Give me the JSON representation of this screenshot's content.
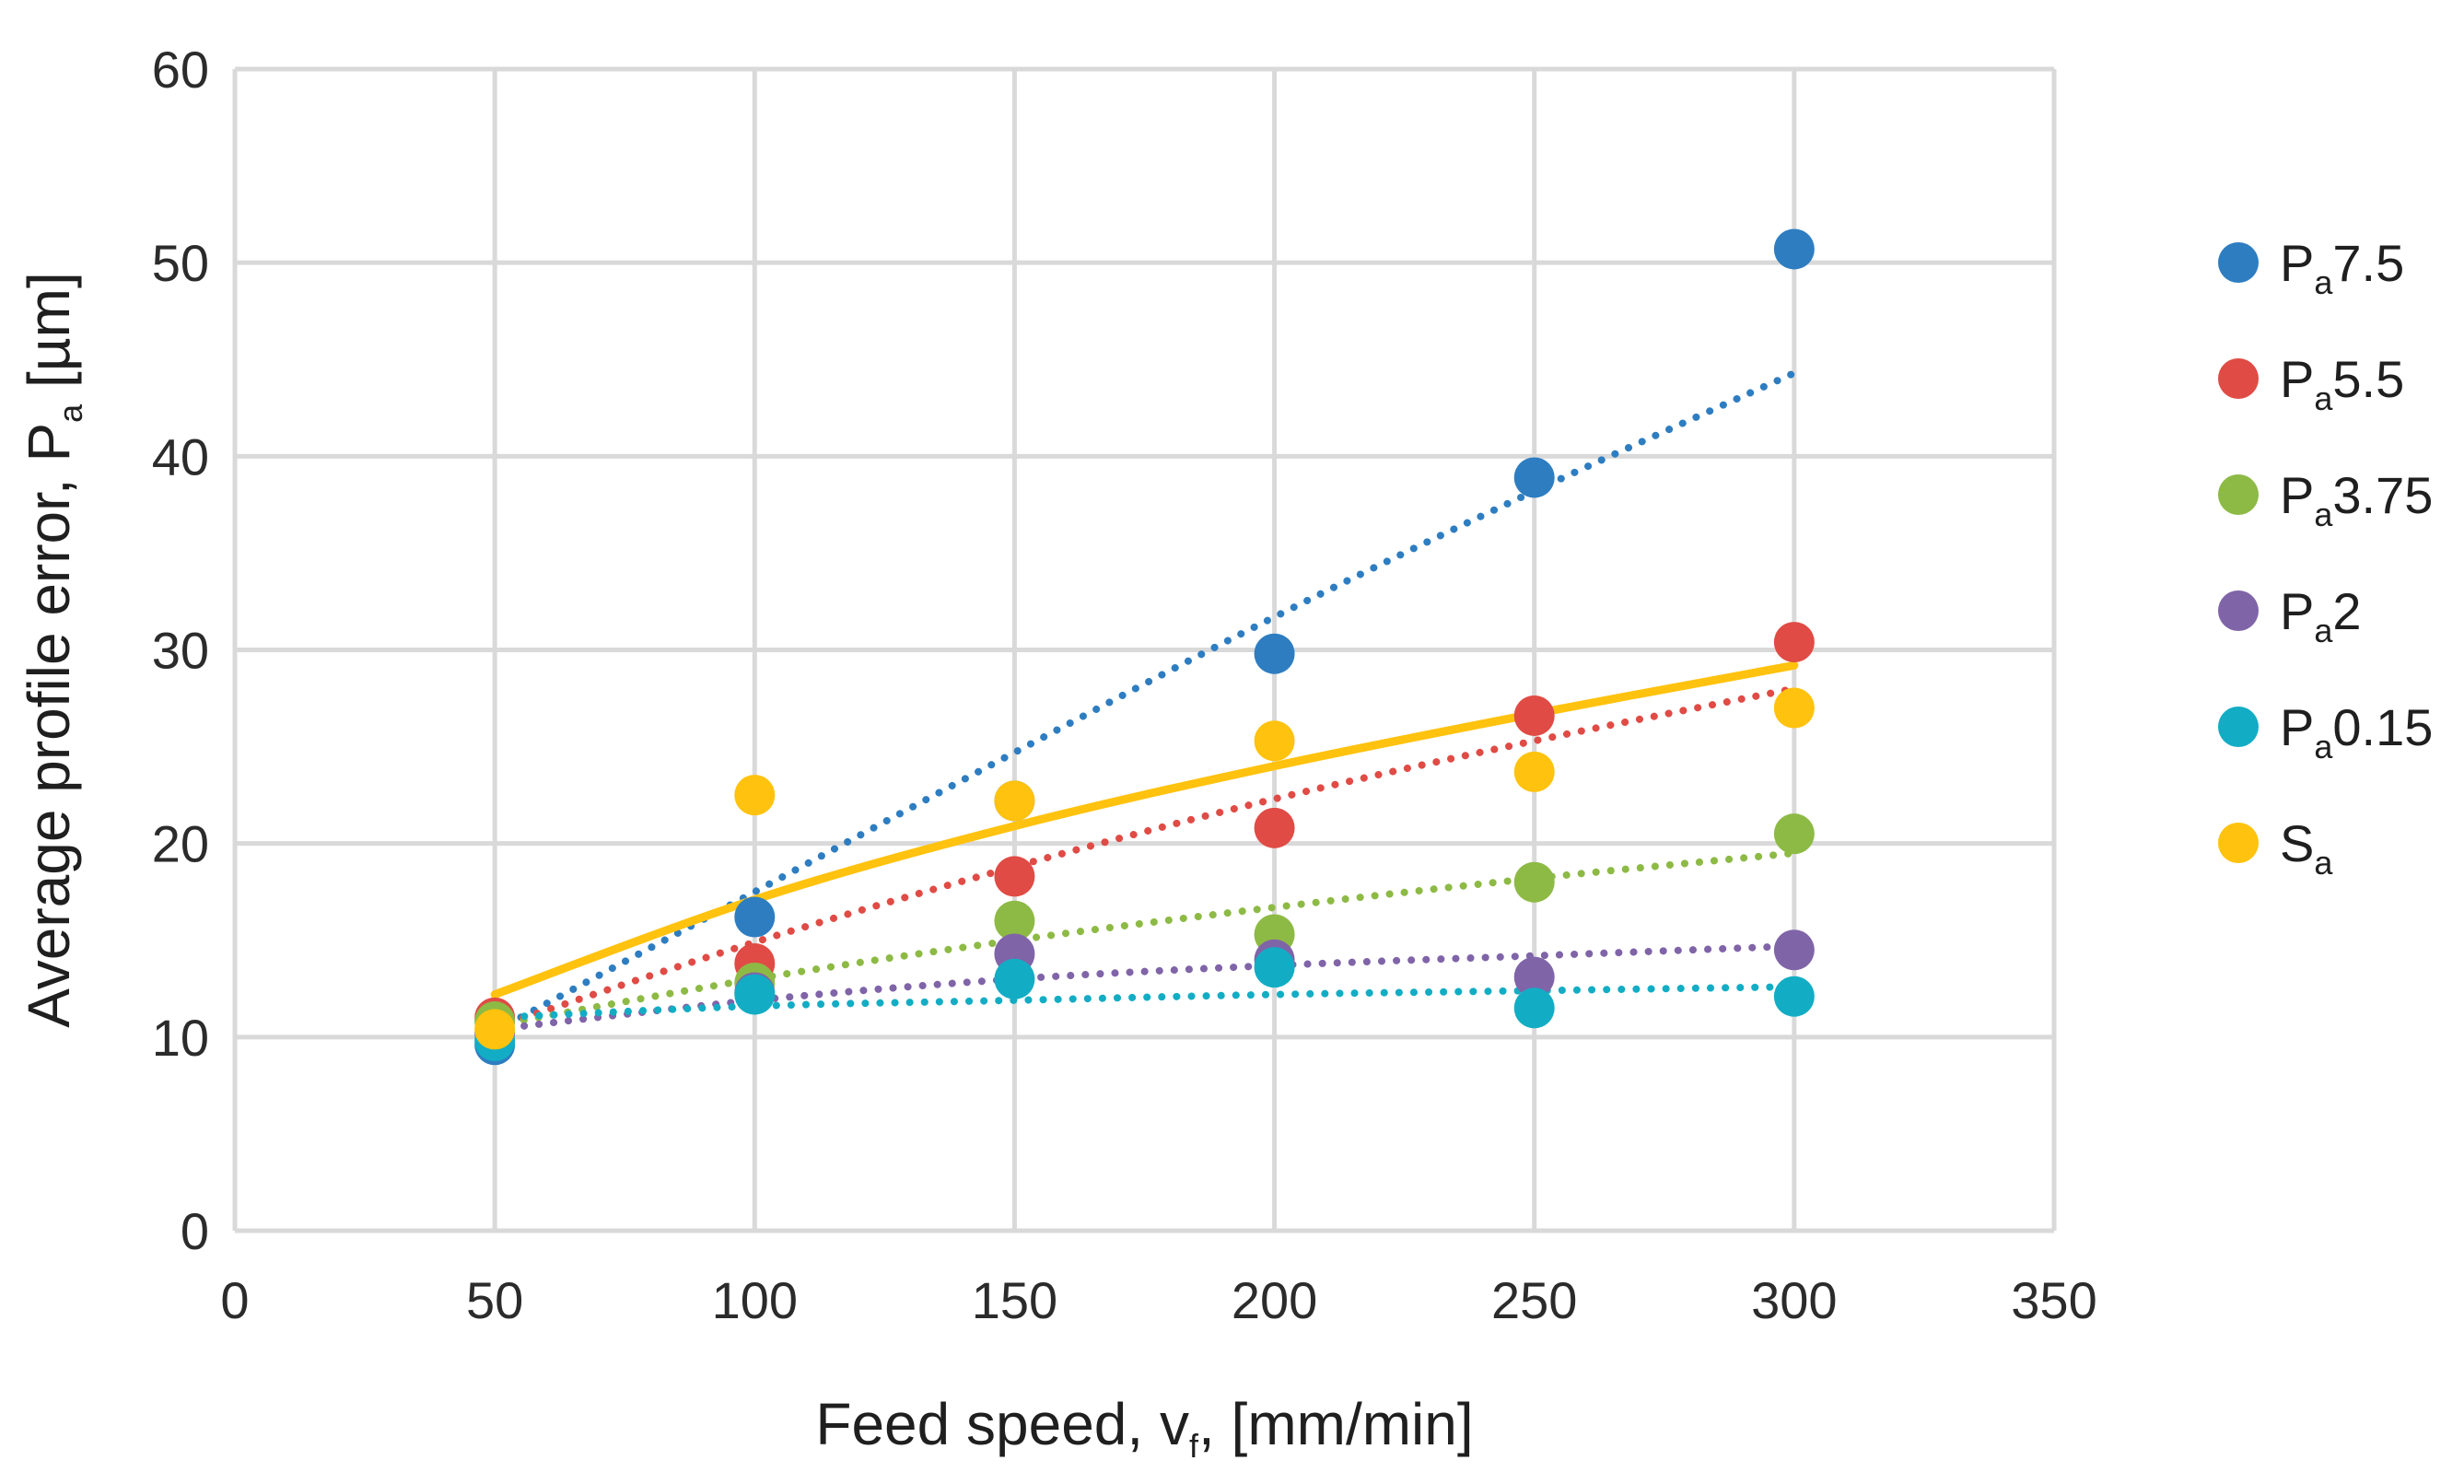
{
  "chart_data": {
    "type": "scatter",
    "title": "",
    "xlabel": {
      "main": "Feed speed, v",
      "sub": "f",
      "suffix": ", [mm/min]"
    },
    "ylabel": {
      "main": "Average profile error, P",
      "sub": "a",
      "suffix": " [µm]"
    },
    "xlim": [
      0,
      350
    ],
    "ylim": [
      0,
      60
    ],
    "xticks": [
      0,
      50,
      100,
      150,
      200,
      250,
      300,
      350
    ],
    "yticks": [
      0,
      10,
      20,
      30,
      40,
      50,
      60
    ],
    "xtick_labels": [
      "0",
      "50",
      "100",
      "150",
      "200",
      "250",
      "300",
      "350"
    ],
    "ytick_labels": [
      "0",
      "10",
      "20",
      "30",
      "40",
      "50",
      "60"
    ],
    "grid": true,
    "legend_position": "right",
    "x": [
      50,
      100,
      150,
      200,
      250,
      300
    ],
    "series": [
      {
        "name": "Pa7.5",
        "label_main": "P",
        "label_sub": "a",
        "label_suffix": "7.5",
        "color": "#2E7DC1",
        "values": [
          9.6,
          16.2,
          22.2,
          29.8,
          38.9,
          50.7
        ],
        "trend": {
          "style": "dotted",
          "values": [
            10.3,
            17.5,
            24.7,
            31.7,
            38.2,
            44.3
          ]
        }
      },
      {
        "name": "Pa5.5",
        "label_main": "P",
        "label_sub": "a",
        "label_suffix": "5.5",
        "color": "#E04B45",
        "values": [
          11.0,
          13.8,
          18.3,
          20.8,
          26.6,
          30.4
        ],
        "trend": {
          "style": "dotted",
          "values": [
            10.5,
            14.9,
            18.8,
            22.3,
            25.3,
            28.0
          ]
        }
      },
      {
        "name": "Pa3.75",
        "label_main": "P",
        "label_sub": "a",
        "label_suffix": "3.75",
        "color": "#8DBA45",
        "values": [
          10.8,
          12.8,
          16.0,
          15.3,
          18.0,
          20.5
        ],
        "trend": {
          "style": "dotted",
          "values": [
            10.6,
            13.0,
            15.0,
            16.7,
            18.2,
            19.5
          ]
        }
      },
      {
        "name": "Pa2",
        "label_main": "P",
        "label_sub": "a",
        "label_suffix": "2",
        "color": "#8064A8",
        "values": [
          10.2,
          12.3,
          14.3,
          14.0,
          13.1,
          14.5
        ],
        "trend": {
          "style": "dotted",
          "values": [
            10.4,
            11.9,
            13.0,
            13.7,
            14.2,
            14.7
          ]
        }
      },
      {
        "name": "Pa0.15",
        "label_main": "P",
        "label_sub": "a",
        "label_suffix": "0.15",
        "color": "#12ADC4",
        "values": [
          9.8,
          12.2,
          13.0,
          13.6,
          11.5,
          12.1
        ],
        "trend": {
          "style": "dotted",
          "values": [
            11.0,
            11.6,
            11.9,
            12.2,
            12.4,
            12.6
          ]
        }
      },
      {
        "name": "Sa",
        "label_main": "S",
        "label_sub": "a",
        "label_suffix": "",
        "color": "#FFC20E",
        "values": [
          10.4,
          22.5,
          22.2,
          25.3,
          23.7,
          27.0
        ],
        "trend": {
          "style": "solid",
          "values": [
            12.2,
            17.1,
            20.9,
            24.0,
            26.7,
            29.2
          ]
        }
      }
    ]
  }
}
